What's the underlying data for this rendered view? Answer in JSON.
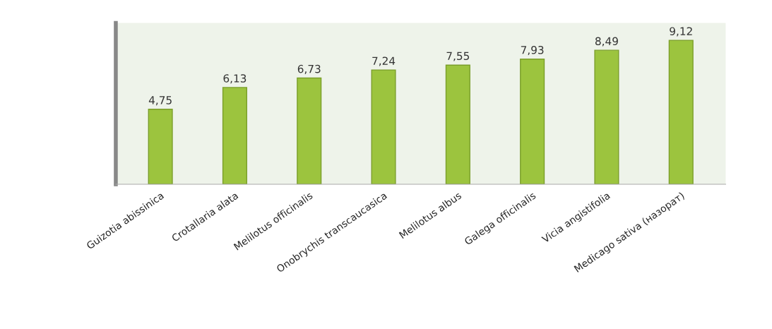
{
  "chart_data": {
    "type": "bar",
    "categories": [
      "Guizotia abissinica",
      "Crotallaria alata",
      "Melilotus officinalis",
      "Onobrychis transcaucasica",
      "Melilotus albus",
      "Galega officinalis",
      "Vicia angistifolia",
      "Medicago sativa (назорат)"
    ],
    "values": [
      4.75,
      6.13,
      6.73,
      7.24,
      7.55,
      7.93,
      8.49,
      9.12
    ],
    "value_labels": [
      "4,75",
      "6,13",
      "6,73",
      "7,24",
      "7,55",
      "7,93",
      "8,49",
      "9,12"
    ],
    "color": "#9cc43e",
    "tick_labels": "x",
    "grid": false,
    "legend": false
  }
}
